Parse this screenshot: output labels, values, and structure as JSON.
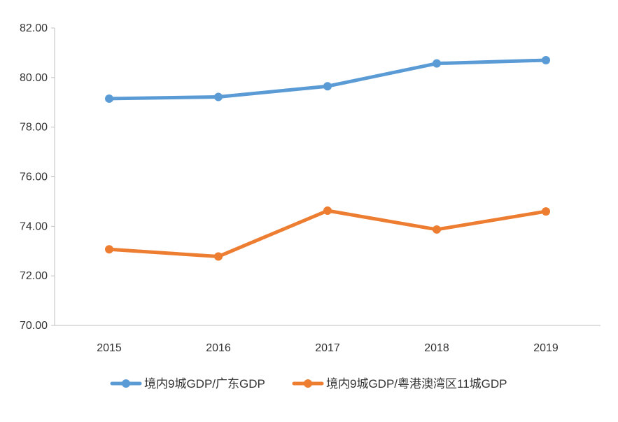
{
  "chart_data": {
    "type": "line",
    "categories": [
      "2015",
      "2016",
      "2017",
      "2018",
      "2019"
    ],
    "series": [
      {
        "name": "境内9城GDP/广东GDP",
        "color": "#5b9bd5",
        "values": [
          79.15,
          79.22,
          79.65,
          80.57,
          80.7
        ]
      },
      {
        "name": "境内9城GDP/粤港澳湾区11城GDP",
        "color": "#ed7d31",
        "values": [
          73.07,
          72.78,
          74.63,
          73.87,
          74.6
        ]
      }
    ],
    "ylim": [
      70,
      82
    ],
    "yticks": [
      "70.00",
      "72.00",
      "74.00",
      "76.00",
      "78.00",
      "80.00",
      "82.00"
    ],
    "grid": false,
    "legend_position": "bottom",
    "title": "",
    "xlabel": "",
    "ylabel": ""
  }
}
